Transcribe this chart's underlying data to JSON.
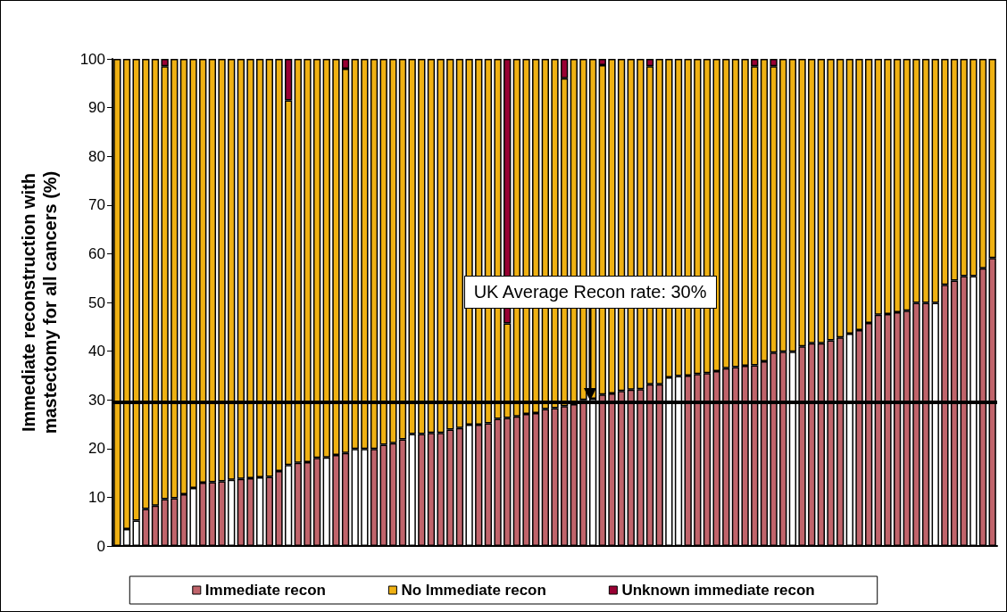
{
  "chart_data": {
    "type": "bar",
    "stacked": true,
    "ylabel": "Immediate reconstruction with mastectomy for all cancers (%)",
    "categories": [
      null,
      null,
      null,
      null,
      null,
      null,
      null,
      null,
      null,
      null,
      null,
      null,
      null,
      null,
      null,
      null,
      null,
      null,
      null,
      null,
      null,
      null,
      null,
      null,
      null,
      null,
      null,
      null,
      null,
      null,
      null,
      null,
      null,
      null,
      null,
      null,
      null,
      null,
      null,
      null,
      null,
      null,
      null,
      null,
      null,
      null,
      null,
      null,
      null,
      null,
      null,
      null,
      null,
      null,
      null,
      null,
      null,
      null,
      null,
      null,
      null,
      null,
      null,
      null,
      null,
      null,
      null,
      null,
      null,
      null,
      null,
      null,
      null,
      null,
      null,
      null,
      null,
      null,
      null,
      null,
      null,
      null,
      null,
      null,
      null,
      null,
      null,
      null,
      null,
      null,
      null,
      null,
      null
    ],
    "series": [
      {
        "name": "Immediate recon",
        "color": "#c0646b",
        "colors": [
          "#c0646b",
          "#ffffff",
          "#ffffff",
          "#c0646b",
          "#c0646b",
          "#c0646b",
          "#c0646b",
          "#c0646b",
          "#ffffff",
          "#c0646b",
          "#c0646b",
          "#c0646b",
          "#ffffff",
          "#c0646b",
          "#c0646b",
          "#ffffff",
          "#c0646b",
          "#c0646b",
          "#ffffff",
          "#c0646b",
          "#c0646b",
          "#c0646b",
          "#ffffff",
          "#c0646b",
          "#c0646b",
          "#ffffff",
          "#ffffff",
          "#c0646b",
          "#c0646b",
          "#c0646b",
          "#c0646b",
          "#ffffff",
          "#c0646b",
          "#c0646b",
          "#c0646b",
          "#c0646b",
          "#c0646b",
          "#ffffff",
          "#c0646b",
          "#c0646b",
          "#c0646b",
          "#c0646b",
          "#c0646b",
          "#c0646b",
          "#c0646b",
          "#c0646b",
          "#c0646b",
          "#c0646b",
          "#c0646b",
          "#c0646b",
          "#ffffff",
          "#c0646b",
          "#c0646b",
          "#c0646b",
          "#c0646b",
          "#c0646b",
          "#c0646b",
          "#c0646b",
          "#ffffff",
          "#ffffff",
          "#c0646b",
          "#c0646b",
          "#c0646b",
          "#c0646b",
          "#c0646b",
          "#c0646b",
          "#c0646b",
          "#c0646b",
          "#c0646b",
          "#c0646b",
          "#c0646b",
          "#ffffff",
          "#c0646b",
          "#c0646b",
          "#c0646b",
          "#c0646b",
          "#c0646b",
          "#ffffff",
          "#c0646b",
          "#c0646b",
          "#c0646b",
          "#c0646b",
          "#c0646b",
          "#c0646b",
          "#c0646b",
          "#c0646b",
          "#ffffff",
          "#c0646b",
          "#c0646b",
          "#c0646b",
          "#ffffff",
          "#c0646b",
          "#c0646b"
        ],
        "values": [
          0,
          3.5,
          5.2,
          7.6,
          8.3,
          9.6,
          9.8,
          10.6,
          11.9,
          13.0,
          13.1,
          13.3,
          13.6,
          13.8,
          13.9,
          14.1,
          14.2,
          15.4,
          16.6,
          17.1,
          17.2,
          18.1,
          18.2,
          18.7,
          19.1,
          19.9,
          19.9,
          19.9,
          20.8,
          21.1,
          21.9,
          23.0,
          23.0,
          23.2,
          23.2,
          23.9,
          24.2,
          24.9,
          24.9,
          25.2,
          26.1,
          26.3,
          26.6,
          27.1,
          27.3,
          28.1,
          28.3,
          28.7,
          29.1,
          30.0,
          30.2,
          31.1,
          31.3,
          31.8,
          32.1,
          32.2,
          33.2,
          33.2,
          34.6,
          34.9,
          35.0,
          35.3,
          35.5,
          35.9,
          36.5,
          36.7,
          37.0,
          37.1,
          37.9,
          39.7,
          39.9,
          39.9,
          41.0,
          41.6,
          41.6,
          42.2,
          42.8,
          43.6,
          44.3,
          45.8,
          47.5,
          47.6,
          48.0,
          48.3,
          49.9,
          49.9,
          49.9,
          53.6,
          54.5,
          55.4,
          55.4,
          57.0,
          59.1
        ]
      },
      {
        "name": "No Immediate recon",
        "color": "#efb113",
        "values": [
          100,
          96.5,
          94.8,
          92.4,
          91.7,
          88.9,
          90.2,
          89.4,
          88.1,
          87.0,
          86.9,
          86.7,
          86.4,
          86.2,
          86.1,
          85.9,
          85.8,
          84.6,
          74.9,
          82.9,
          82.8,
          81.9,
          81.8,
          81.3,
          78.9,
          80.1,
          80.1,
          80.1,
          79.2,
          78.9,
          78.1,
          77.0,
          77.0,
          76.8,
          76.8,
          76.1,
          75.8,
          75.1,
          75.1,
          74.8,
          73.9,
          19.4,
          73.4,
          72.9,
          72.7,
          71.9,
          71.7,
          67.3,
          70.9,
          70.0,
          69.8,
          67.6,
          68.7,
          68.2,
          67.9,
          67.8,
          65.3,
          66.8,
          65.4,
          65.1,
          65.0,
          64.7,
          64.5,
          64.1,
          63.5,
          63.3,
          63.0,
          61.4,
          62.1,
          58.8,
          60.1,
          60.1,
          59.0,
          58.4,
          58.4,
          57.8,
          57.2,
          56.4,
          55.7,
          54.2,
          52.5,
          52.4,
          52.0,
          51.7,
          50.1,
          50.1,
          50.1,
          46.4,
          45.5,
          44.6,
          44.6,
          43.0,
          40.9
        ]
      },
      {
        "name": "Unknown immediate recon",
        "color": "#990033",
        "values": [
          null,
          null,
          null,
          null,
          null,
          1.5,
          null,
          null,
          null,
          null,
          null,
          null,
          null,
          null,
          null,
          null,
          null,
          null,
          8.5,
          null,
          null,
          null,
          null,
          null,
          2,
          null,
          null,
          null,
          null,
          null,
          null,
          null,
          null,
          null,
          null,
          null,
          null,
          null,
          null,
          null,
          null,
          54.3,
          null,
          null,
          null,
          null,
          null,
          4,
          null,
          null,
          null,
          1.3,
          null,
          null,
          null,
          null,
          1.5,
          null,
          null,
          null,
          null,
          null,
          null,
          null,
          null,
          null,
          null,
          1.5,
          null,
          1.5,
          null,
          null,
          null,
          null,
          null,
          null,
          null,
          null,
          null,
          null,
          null,
          null,
          null,
          null,
          null,
          null,
          null,
          null,
          null,
          null,
          null,
          null,
          null
        ]
      }
    ],
    "ylim": [
      0,
      100
    ],
    "yticks": [
      0,
      10,
      20,
      30,
      40,
      50,
      60,
      70,
      80,
      90,
      100
    ],
    "ref_lines": [
      {
        "axis": "y",
        "value": 29.5,
        "color": "#000000"
      }
    ],
    "annotations": [
      "UK Average Recon rate: 30%"
    ],
    "tick_labels": "y",
    "legend": "bottom"
  }
}
